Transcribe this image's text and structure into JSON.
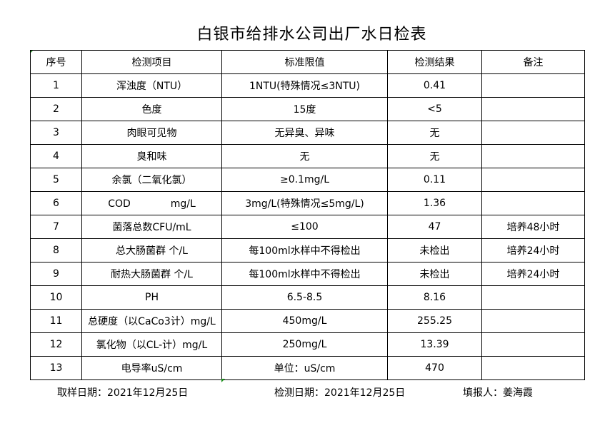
{
  "title": "白银市给排水公司出厂水日检表",
  "headers": [
    "序号",
    "检测项目",
    "标准限值",
    "检测结果",
    "备注"
  ],
  "rows": [
    [
      "1",
      "浑浊度（NTU）",
      "1NTU(特殊情况≤3NTU)",
      "0.41",
      ""
    ],
    [
      "2",
      "色度",
      "15度",
      "<5",
      ""
    ],
    [
      "3",
      "肉眼可见物",
      "无异臭、异味",
      "无",
      ""
    ],
    [
      "4",
      "臭和味",
      "无",
      "无",
      ""
    ],
    [
      "5",
      "余氯（二氧化氯）",
      "≥0.1mg/L",
      "0.11",
      ""
    ],
    [
      "6",
      "COD　　　　mg/L",
      "3mg/L(特殊情况≤5mg/L)",
      "1.36",
      ""
    ],
    [
      "7",
      "菌落总数CFU/mL",
      "≤100",
      "47",
      "培养48小时"
    ],
    [
      "8",
      "总大肠菌群 个/L",
      "每100ml水样中不得检出",
      "未检出",
      "培养24小时"
    ],
    [
      "9",
      "耐热大肠菌群 个/L",
      "每100ml水样中不得检出",
      "未检出",
      "培养24小时"
    ],
    [
      "10",
      "PH",
      "6.5-8.5",
      "8.16",
      ""
    ],
    [
      "11",
      "总硬度（以CaCo3计）mg/L",
      "450mg/L",
      "255.25",
      ""
    ],
    [
      "12",
      "氯化物（以CL-计）mg/L",
      "250mg/L",
      "13.39",
      ""
    ],
    [
      "13",
      "电导率uS/cm",
      "单位：uS/cm",
      "470",
      ""
    ]
  ],
  "footer": {
    "sampling_date": "取样日期：2021年12月25日",
    "test_date": "检测日期：2021年12月25日",
    "reporter": "填报人：姜海霞"
  }
}
